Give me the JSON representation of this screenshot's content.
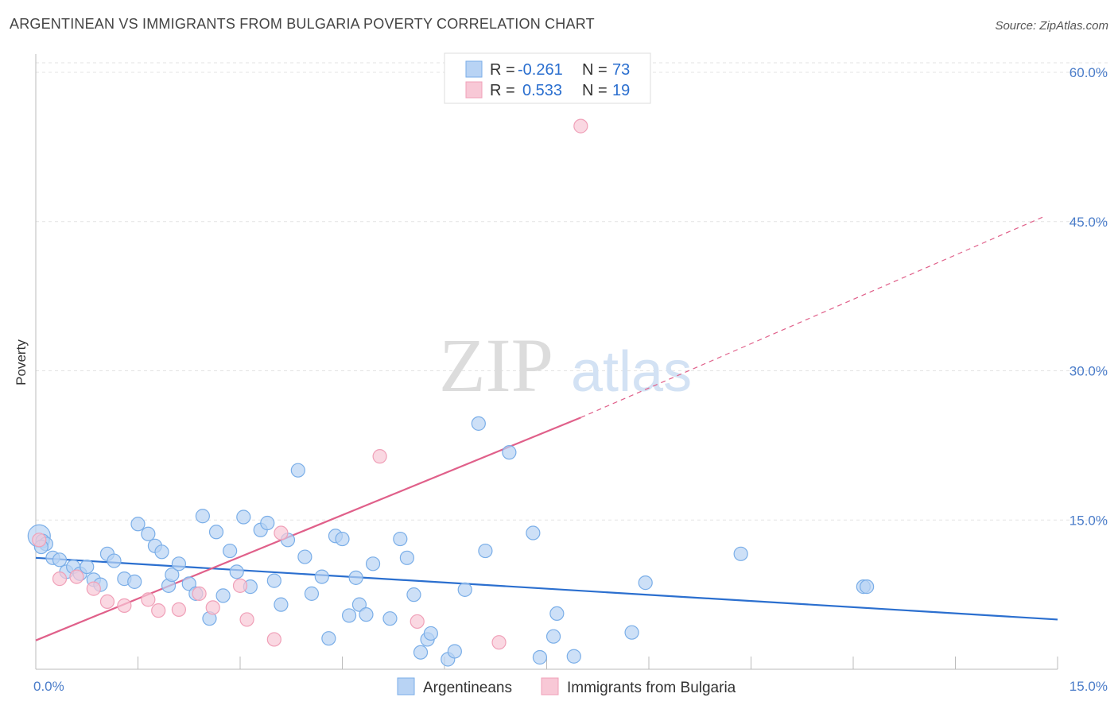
{
  "header": {
    "title": "ARGENTINEAN VS IMMIGRANTS FROM BULGARIA POVERTY CORRELATION CHART",
    "source": "Source: ZipAtlas.com"
  },
  "watermark": {
    "zip": "ZIP",
    "atlas": "atlas"
  },
  "chart_data": {
    "type": "scatter",
    "title": "ARGENTINEAN VS IMMIGRANTS FROM BULGARIA POVERTY CORRELATION CHART",
    "xlabel": "",
    "ylabel": "Poverty",
    "xlim": [
      0,
      15
    ],
    "ylim": [
      0,
      62
    ],
    "x_tick_labels": [
      "0.0%",
      "15.0%"
    ],
    "y_ticks": [
      15,
      30,
      45,
      60
    ],
    "y_tick_labels": [
      "15.0%",
      "30.0%",
      "45.0%",
      "60.0%"
    ],
    "grid": true,
    "legend": {
      "placement": "top-center",
      "rows": [
        {
          "r_label": "R =",
          "r_value": "-0.261",
          "n_label": "N =",
          "n_value": "73"
        },
        {
          "r_label": "R =",
          "r_value": "0.533",
          "n_label": "N =",
          "n_value": "19"
        }
      ]
    },
    "series": [
      {
        "name": "Argentineans",
        "color": "#7aaee8",
        "fill": "#b8d3f4",
        "trend_color": "#2b6fcf",
        "trend": {
          "x": [
            0,
            15
          ],
          "y": [
            11.2,
            5.0
          ]
        },
        "points": [
          [
            0.05,
            13.4
          ],
          [
            0.1,
            12.9
          ],
          [
            0.15,
            12.6
          ],
          [
            0.25,
            11.2
          ],
          [
            0.35,
            11.0
          ],
          [
            0.45,
            9.8
          ],
          [
            0.55,
            10.3
          ],
          [
            0.65,
            9.6
          ],
          [
            0.75,
            10.3
          ],
          [
            0.85,
            9.0
          ],
          [
            0.95,
            8.5
          ],
          [
            1.05,
            11.6
          ],
          [
            1.15,
            10.9
          ],
          [
            1.3,
            9.1
          ],
          [
            1.45,
            8.8
          ],
          [
            1.5,
            14.6
          ],
          [
            1.65,
            13.6
          ],
          [
            1.75,
            12.4
          ],
          [
            1.85,
            11.8
          ],
          [
            1.95,
            8.4
          ],
          [
            2.0,
            9.5
          ],
          [
            2.1,
            10.6
          ],
          [
            2.25,
            8.6
          ],
          [
            2.35,
            7.6
          ],
          [
            2.45,
            15.4
          ],
          [
            2.55,
            5.1
          ],
          [
            2.65,
            13.8
          ],
          [
            2.75,
            7.4
          ],
          [
            2.85,
            11.9
          ],
          [
            2.95,
            9.8
          ],
          [
            3.05,
            15.3
          ],
          [
            3.15,
            8.3
          ],
          [
            3.3,
            14.0
          ],
          [
            3.4,
            14.7
          ],
          [
            3.5,
            8.9
          ],
          [
            3.6,
            6.5
          ],
          [
            3.7,
            13.0
          ],
          [
            3.85,
            20.0
          ],
          [
            3.95,
            11.3
          ],
          [
            4.05,
            7.6
          ],
          [
            4.2,
            9.3
          ],
          [
            4.3,
            3.1
          ],
          [
            4.4,
            13.4
          ],
          [
            4.5,
            13.1
          ],
          [
            4.6,
            5.4
          ],
          [
            4.7,
            9.2
          ],
          [
            4.75,
            6.5
          ],
          [
            4.85,
            5.5
          ],
          [
            4.95,
            10.6
          ],
          [
            5.2,
            5.1
          ],
          [
            5.35,
            13.1
          ],
          [
            5.45,
            11.2
          ],
          [
            5.55,
            7.5
          ],
          [
            5.65,
            1.7
          ],
          [
            5.75,
            3.0
          ],
          [
            5.8,
            3.6
          ],
          [
            6.05,
            1.0
          ],
          [
            6.15,
            1.8
          ],
          [
            6.3,
            8.0
          ],
          [
            6.5,
            24.7
          ],
          [
            6.6,
            11.9
          ],
          [
            6.95,
            21.8
          ],
          [
            7.3,
            13.7
          ],
          [
            7.4,
            1.2
          ],
          [
            7.6,
            3.3
          ],
          [
            7.65,
            5.6
          ],
          [
            7.9,
            1.3
          ],
          [
            8.75,
            3.7
          ],
          [
            8.95,
            8.7
          ],
          [
            10.35,
            11.6
          ],
          [
            12.15,
            8.3
          ],
          [
            12.2,
            8.3
          ],
          [
            0.08,
            12.3
          ]
        ]
      },
      {
        "name": "Immigrants from Bulgaria",
        "color": "#f0a0b8",
        "fill": "#f8c8d6",
        "trend_color": "#e0608a",
        "trend_solid": {
          "x": [
            0,
            8.0
          ],
          "y": [
            2.9,
            25.3
          ]
        },
        "trend_dashed": {
          "x": [
            8.0,
            14.8
          ],
          "y": [
            25.3,
            45.5
          ]
        },
        "points": [
          [
            0.05,
            13.0
          ],
          [
            0.35,
            9.1
          ],
          [
            0.6,
            9.3
          ],
          [
            0.85,
            8.1
          ],
          [
            1.05,
            6.8
          ],
          [
            1.3,
            6.4
          ],
          [
            1.65,
            7.0
          ],
          [
            1.8,
            5.9
          ],
          [
            2.1,
            6.0
          ],
          [
            2.4,
            7.6
          ],
          [
            2.6,
            6.2
          ],
          [
            3.0,
            8.4
          ],
          [
            3.1,
            5.0
          ],
          [
            3.5,
            3.0
          ],
          [
            3.6,
            13.7
          ],
          [
            5.05,
            21.4
          ],
          [
            5.6,
            4.8
          ],
          [
            6.8,
            2.7
          ],
          [
            8.0,
            54.6
          ]
        ]
      }
    ]
  }
}
